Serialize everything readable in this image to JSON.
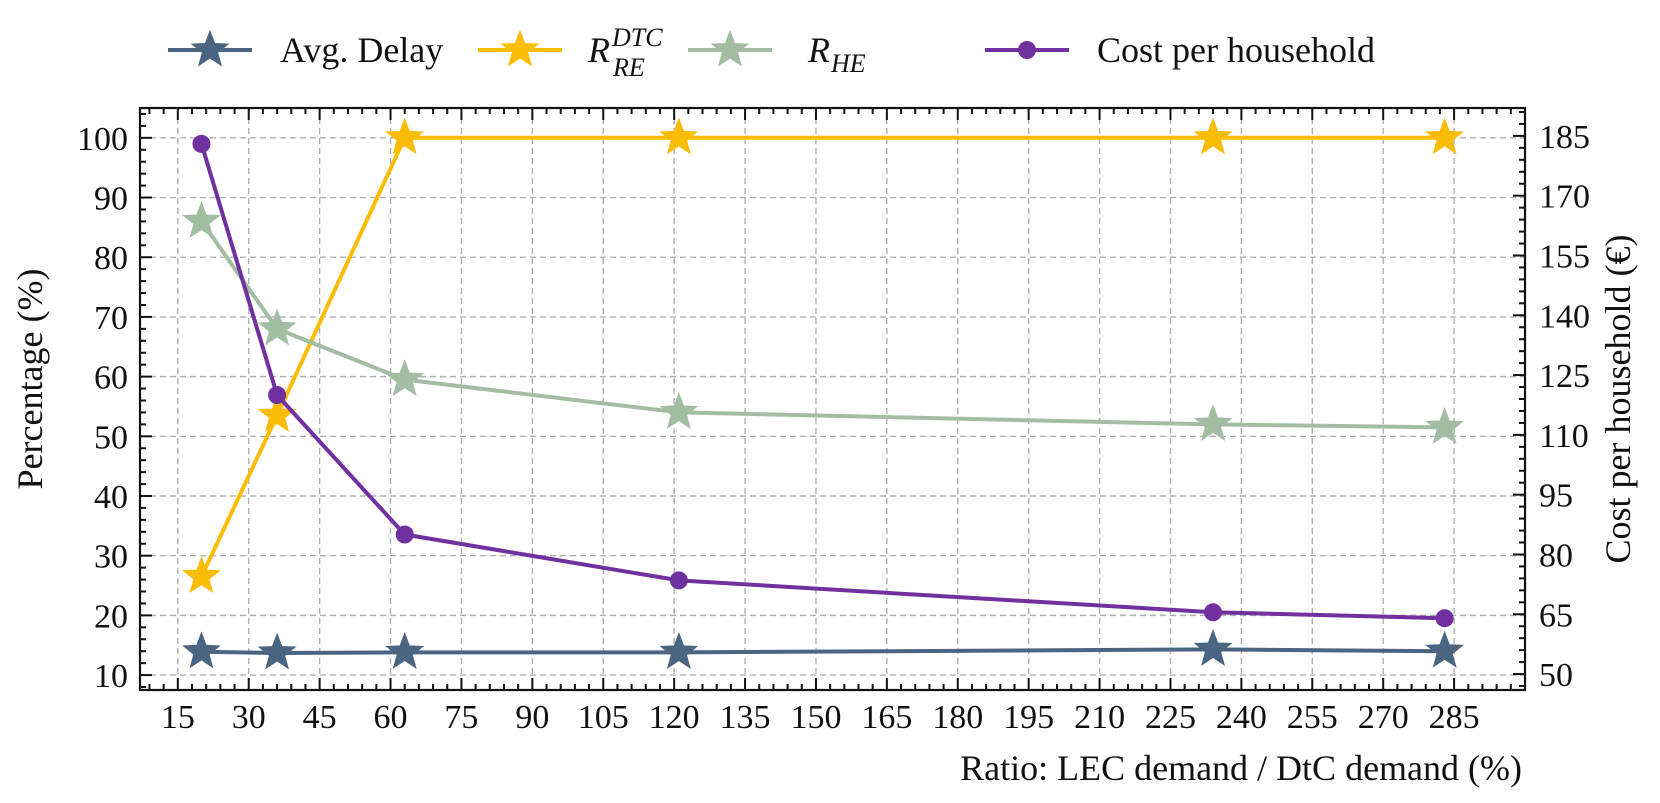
{
  "chart_data": {
    "type": "line",
    "x": [
      20,
      36,
      63,
      121,
      234,
      283
    ],
    "series": [
      {
        "name": "Avg. Delay",
        "axis": "left",
        "marker": "star",
        "color": "#4a6580",
        "values": [
          13.9,
          13.7,
          13.8,
          13.8,
          14.3,
          14.0
        ]
      },
      {
        "name": "R_RE^DTC",
        "label_main": "R",
        "label_sub": "RE",
        "label_sup": "DTC",
        "axis": "left",
        "marker": "star",
        "color": "#fbbc05",
        "values": [
          26.5,
          53.5,
          100,
          100,
          100,
          100
        ]
      },
      {
        "name": "R_HE",
        "label_main": "R",
        "label_sub": "HE",
        "axis": "left",
        "marker": "star",
        "color": "#a3bda2",
        "values": [
          86,
          68,
          59.5,
          54,
          52,
          51.5
        ]
      },
      {
        "name": "Cost per household",
        "axis": "right",
        "marker": "circle",
        "color": "#7030a0",
        "values": [
          183,
          120,
          85,
          73.5,
          65.5,
          64
        ]
      }
    ],
    "xlabel": "Ratio: LEC demand / DtC demand (%)",
    "ylabel_left": "Percentage (%)",
    "ylabel_right": "Cost per household (€)",
    "xlim": [
      7,
      300
    ],
    "ylim_left": [
      7.5,
      105
    ],
    "ylim_right": [
      46,
      192
    ],
    "xticks": [
      15,
      30,
      45,
      60,
      75,
      90,
      105,
      120,
      135,
      150,
      165,
      180,
      195,
      210,
      225,
      240,
      255,
      270,
      285
    ],
    "yticks_left": [
      10,
      20,
      30,
      40,
      50,
      60,
      70,
      80,
      90,
      100
    ],
    "yticks_right": [
      50,
      65,
      80,
      95,
      110,
      125,
      140,
      155,
      170,
      185
    ],
    "grid": true,
    "legend_position": "top"
  }
}
